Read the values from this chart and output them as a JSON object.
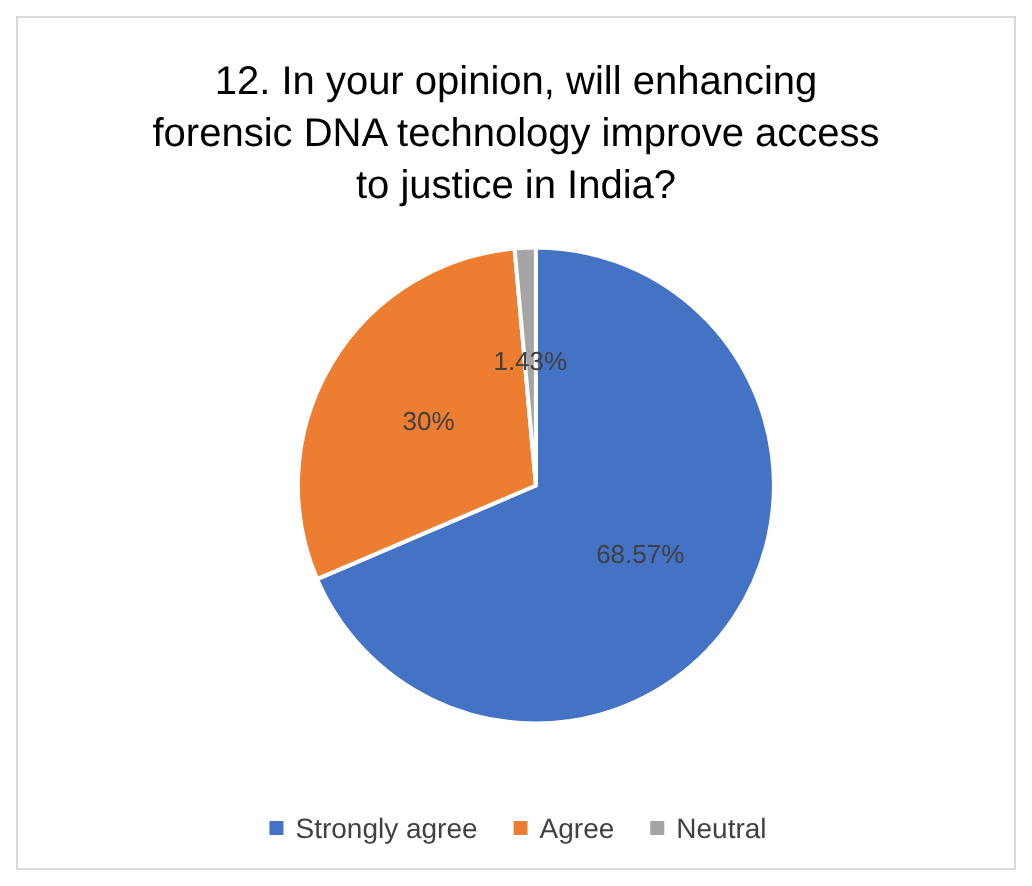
{
  "chart_data": {
    "type": "pie",
    "title": "12. In your opinion, will enhancing\nforensic DNA technology improve access\nto justice in India?",
    "categories": [
      "Strongly agree",
      "Agree",
      "Neutral"
    ],
    "values": [
      68.57,
      30,
      1.43
    ],
    "colors": [
      "#4472c4",
      "#ed7d31",
      "#a5a5a5"
    ],
    "value_labels": [
      "68.57%",
      "30%",
      "1.43%"
    ],
    "legend": "bottom"
  }
}
